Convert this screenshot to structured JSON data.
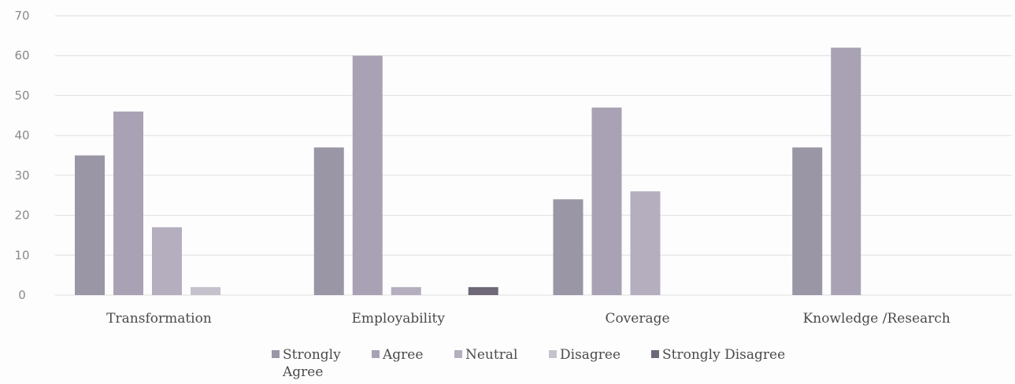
{
  "chart_data": {
    "type": "bar",
    "title": "",
    "xlabel": "",
    "ylabel": "",
    "ylim": [
      0,
      70
    ],
    "yticks": [
      0,
      10,
      20,
      30,
      40,
      50,
      60,
      70
    ],
    "grid": true,
    "legend_position": "bottom",
    "categories": [
      "Transformation",
      "Employability",
      "Coverage",
      "Knowledge /Research"
    ],
    "series": [
      {
        "name": "Strongly Agree",
        "legend_lines": [
          "Strongly",
          "Agree"
        ],
        "color": "#9a96a6",
        "values": [
          35,
          37,
          24,
          37
        ]
      },
      {
        "name": "Agree",
        "legend_lines": [
          "Agree"
        ],
        "color": "#a8a2b4",
        "values": [
          46,
          60,
          47,
          62
        ]
      },
      {
        "name": "Neutral",
        "legend_lines": [
          "Neutral"
        ],
        "color": "#b4aebf",
        "values": [
          17,
          2,
          26,
          0
        ]
      },
      {
        "name": "Disagree",
        "legend_lines": [
          "Disagree"
        ],
        "color": "#c6c2cd",
        "values": [
          2,
          0,
          0,
          0
        ]
      },
      {
        "name": "Strongly Disagree",
        "legend_lines": [
          "Strongly Disagree"
        ],
        "color": "#6e6878",
        "values": [
          0,
          2,
          0,
          0
        ]
      }
    ]
  }
}
